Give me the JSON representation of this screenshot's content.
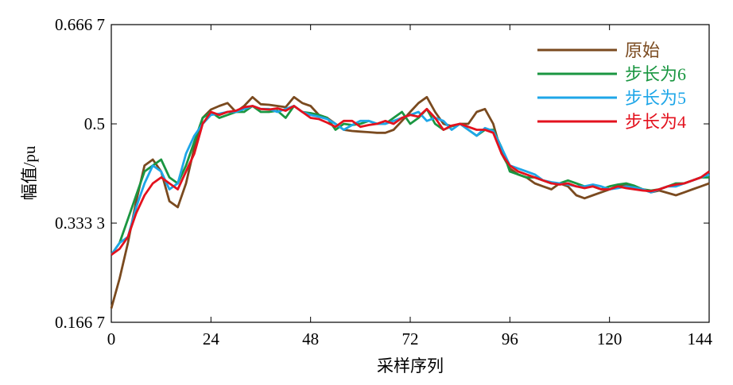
{
  "chart_data": {
    "type": "line",
    "xlabel": "采样序列",
    "ylabel": "幅值/pu",
    "xlim": [
      0,
      144
    ],
    "ylim": [
      0.1667,
      0.6667
    ],
    "xticks": [
      0,
      24,
      48,
      72,
      96,
      120,
      144
    ],
    "xtick_labels": [
      "0",
      "24",
      "48",
      "72",
      "96",
      "120",
      "144"
    ],
    "yticks": [
      0.1667,
      0.3333,
      0.5,
      0.6667
    ],
    "ytick_labels": [
      "0.166 7",
      "0.333 3",
      "0.5",
      "0.666 7"
    ],
    "grid": false,
    "legend_position": "top-right",
    "series": [
      {
        "name": "原始",
        "color": "#7a4a1f",
        "x": [
          0,
          2,
          4,
          6,
          8,
          10,
          12,
          14,
          16,
          18,
          20,
          22,
          24,
          26,
          28,
          30,
          32,
          34,
          36,
          38,
          40,
          42,
          44,
          46,
          48,
          50,
          52,
          54,
          56,
          58,
          60,
          62,
          64,
          66,
          68,
          70,
          72,
          74,
          76,
          78,
          80,
          82,
          84,
          86,
          88,
          90,
          92,
          94,
          96,
          98,
          100,
          102,
          104,
          106,
          108,
          110,
          112,
          114,
          116,
          118,
          120,
          122,
          124,
          126,
          128,
          130,
          132,
          134,
          136,
          138,
          140,
          142,
          144
        ],
        "y": [
          0.19,
          0.24,
          0.3,
          0.37,
          0.43,
          0.44,
          0.42,
          0.37,
          0.36,
          0.4,
          0.46,
          0.51,
          0.524,
          0.53,
          0.535,
          0.52,
          0.53,
          0.545,
          0.533,
          0.532,
          0.53,
          0.528,
          0.545,
          0.535,
          0.53,
          0.515,
          0.51,
          0.5,
          0.49,
          0.488,
          0.487,
          0.486,
          0.485,
          0.485,
          0.49,
          0.505,
          0.52,
          0.535,
          0.545,
          0.52,
          0.5,
          0.496,
          0.5,
          0.5,
          0.52,
          0.525,
          0.5,
          0.45,
          0.425,
          0.415,
          0.41,
          0.4,
          0.395,
          0.39,
          0.4,
          0.395,
          0.38,
          0.375,
          0.38,
          0.385,
          0.39,
          0.395,
          0.398,
          0.395,
          0.39,
          0.385,
          0.388,
          0.384,
          0.38,
          0.385,
          0.39,
          0.395,
          0.4
        ]
      },
      {
        "name": "步长为6",
        "color": "#1a9641",
        "x": [
          0,
          2,
          4,
          6,
          8,
          10,
          12,
          14,
          16,
          18,
          20,
          22,
          24,
          26,
          28,
          30,
          32,
          34,
          36,
          38,
          40,
          42,
          44,
          46,
          48,
          50,
          52,
          54,
          56,
          58,
          60,
          62,
          64,
          66,
          68,
          70,
          72,
          74,
          76,
          78,
          80,
          82,
          84,
          86,
          88,
          90,
          92,
          94,
          96,
          98,
          100,
          102,
          104,
          106,
          108,
          110,
          112,
          114,
          116,
          118,
          120,
          122,
          124,
          126,
          128,
          130,
          132,
          134,
          136,
          138,
          140,
          142,
          144
        ],
        "y": [
          0.28,
          0.3,
          0.34,
          0.38,
          0.42,
          0.43,
          0.44,
          0.41,
          0.4,
          0.43,
          0.47,
          0.51,
          0.52,
          0.51,
          0.515,
          0.52,
          0.52,
          0.53,
          0.52,
          0.52,
          0.522,
          0.51,
          0.53,
          0.52,
          0.518,
          0.515,
          0.51,
          0.49,
          0.5,
          0.498,
          0.5,
          0.505,
          0.5,
          0.5,
          0.51,
          0.52,
          0.5,
          0.51,
          0.525,
          0.5,
          0.49,
          0.496,
          0.5,
          0.49,
          0.48,
          0.49,
          0.49,
          0.46,
          0.42,
          0.415,
          0.41,
          0.41,
          0.405,
          0.4,
          0.4,
          0.405,
          0.4,
          0.395,
          0.395,
          0.39,
          0.395,
          0.398,
          0.4,
          0.396,
          0.39,
          0.388,
          0.39,
          0.395,
          0.4,
          0.4,
          0.405,
          0.41,
          0.41
        ]
      },
      {
        "name": "步长为5",
        "color": "#1ea6e8",
        "x": [
          0,
          2,
          4,
          6,
          8,
          10,
          12,
          14,
          16,
          18,
          20,
          22,
          24,
          26,
          28,
          30,
          32,
          34,
          36,
          38,
          40,
          42,
          44,
          46,
          48,
          50,
          52,
          54,
          56,
          58,
          60,
          62,
          64,
          66,
          68,
          70,
          72,
          74,
          76,
          78,
          80,
          82,
          84,
          86,
          88,
          90,
          92,
          94,
          96,
          98,
          100,
          102,
          104,
          106,
          108,
          110,
          112,
          114,
          116,
          118,
          120,
          122,
          124,
          126,
          128,
          130,
          132,
          134,
          136,
          138,
          140,
          142,
          144
        ],
        "y": [
          0.28,
          0.3,
          0.31,
          0.36,
          0.4,
          0.43,
          0.42,
          0.39,
          0.4,
          0.45,
          0.48,
          0.5,
          0.515,
          0.517,
          0.52,
          0.52,
          0.525,
          0.53,
          0.525,
          0.525,
          0.52,
          0.525,
          0.53,
          0.52,
          0.515,
          0.512,
          0.508,
          0.5,
          0.49,
          0.498,
          0.505,
          0.505,
          0.5,
          0.5,
          0.505,
          0.51,
          0.515,
          0.52,
          0.505,
          0.51,
          0.505,
          0.49,
          0.5,
          0.49,
          0.48,
          0.493,
          0.488,
          0.46,
          0.43,
          0.425,
          0.42,
          0.415,
          0.405,
          0.402,
          0.4,
          0.398,
          0.395,
          0.395,
          0.398,
          0.395,
          0.39,
          0.392,
          0.395,
          0.393,
          0.39,
          0.385,
          0.39,
          0.395,
          0.395,
          0.4,
          0.405,
          0.41,
          0.415
        ]
      },
      {
        "name": "步长为4",
        "color": "#e3121e",
        "x": [
          0,
          2,
          4,
          6,
          8,
          10,
          12,
          14,
          16,
          18,
          20,
          22,
          24,
          26,
          28,
          30,
          32,
          34,
          36,
          38,
          40,
          42,
          44,
          46,
          48,
          50,
          52,
          54,
          56,
          58,
          60,
          62,
          64,
          66,
          68,
          70,
          72,
          74,
          76,
          78,
          80,
          82,
          84,
          86,
          88,
          90,
          92,
          94,
          96,
          98,
          100,
          102,
          104,
          106,
          108,
          110,
          112,
          114,
          116,
          118,
          120,
          122,
          124,
          126,
          128,
          130,
          132,
          134,
          136,
          138,
          140,
          142,
          144
        ],
        "y": [
          0.28,
          0.29,
          0.31,
          0.35,
          0.38,
          0.4,
          0.41,
          0.4,
          0.39,
          0.42,
          0.45,
          0.5,
          0.52,
          0.515,
          0.52,
          0.522,
          0.528,
          0.53,
          0.525,
          0.524,
          0.526,
          0.522,
          0.53,
          0.52,
          0.51,
          0.508,
          0.502,
          0.495,
          0.505,
          0.505,
          0.495,
          0.498,
          0.5,
          0.505,
          0.5,
          0.51,
          0.515,
          0.512,
          0.525,
          0.51,
          0.49,
          0.497,
          0.5,
          0.495,
          0.49,
          0.49,
          0.485,
          0.45,
          0.43,
          0.42,
          0.415,
          0.41,
          0.405,
          0.4,
          0.398,
          0.4,
          0.395,
          0.392,
          0.395,
          0.39,
          0.39,
          0.395,
          0.392,
          0.39,
          0.388,
          0.387,
          0.39,
          0.395,
          0.398,
          0.4,
          0.405,
          0.41,
          0.42
        ]
      }
    ]
  }
}
